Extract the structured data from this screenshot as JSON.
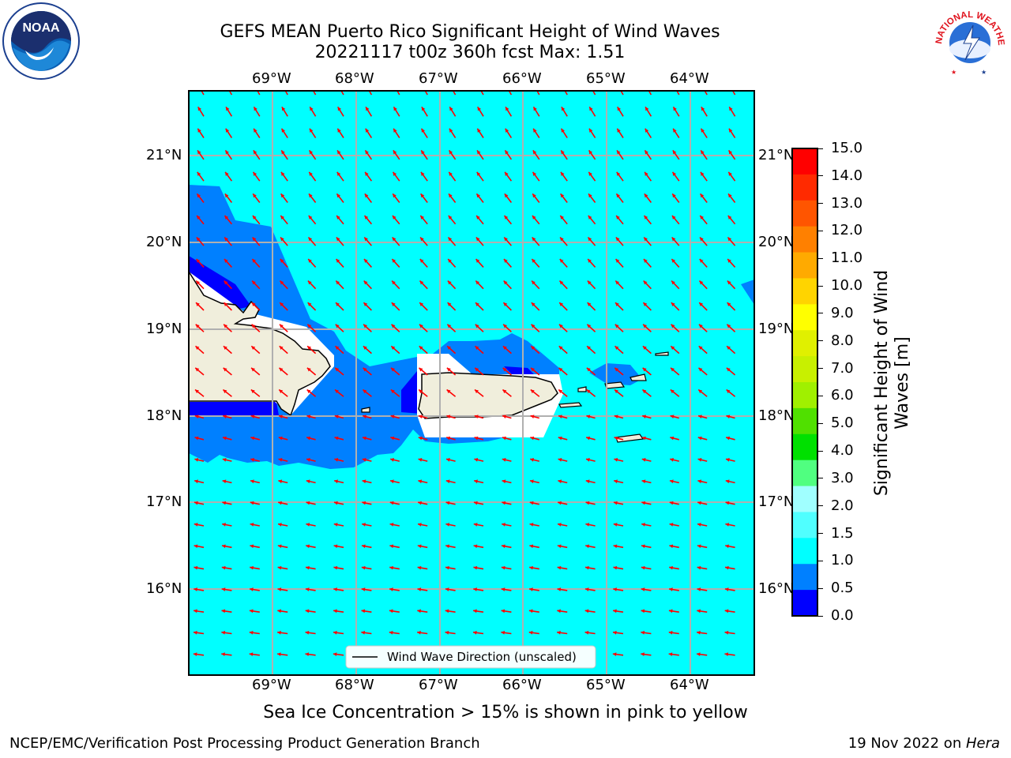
{
  "title": {
    "line1": "GEFS MEAN Puerto Rico Significant Height of Wind Waves",
    "line2": "20221117 t00z 360h fcst   Max: 1.51"
  },
  "map": {
    "lon_labels": [
      "69°W",
      "68°W",
      "67°W",
      "66°W",
      "65°W",
      "64°W"
    ],
    "lat_labels": [
      "21°N",
      "20°N",
      "19°N",
      "18°N",
      "17°N",
      "16°N"
    ],
    "extent": {
      "lon": [
        -70.0,
        -63.25
      ],
      "lat": [
        15.0,
        21.75
      ]
    },
    "ocean_color": "#00ffff",
    "arrow_color": "#ff0000",
    "land_color": "#f0eedc",
    "gridlines": true
  },
  "legend": {
    "label": "Wind Wave Direction (unscaled)",
    "placement": "lower-center"
  },
  "colorbar": {
    "title": "Significant Height of Wind Waves [m]",
    "ticks": [
      "15.0",
      "14.0",
      "13.0",
      "12.0",
      "11.0",
      "10.0",
      "9.0",
      "8.0",
      "7.0",
      "6.0",
      "5.0",
      "4.0",
      "3.0",
      "2.0",
      "1.5",
      "1.0",
      "0.5",
      "0.0"
    ],
    "colors": [
      "#ff0000",
      "#ff2a00",
      "#ff5500",
      "#ff8000",
      "#ffaa00",
      "#ffd400",
      "#ffff00",
      "#e0f000",
      "#c8f000",
      "#a0f000",
      "#50e000",
      "#00e000",
      "#50ff80",
      "#a0ffff",
      "#50ffff",
      "#00ffff",
      "#0080ff",
      "#0000ff"
    ]
  },
  "note": "Sea Ice Concentration > 15% is shown in pink to yellow",
  "footer": {
    "left": "NCEP/EMC/Verification Post Processing Product Generation Branch",
    "right_date": "19 Nov 2022 on ",
    "right_system": "Hera"
  },
  "logos": {
    "left": "NOAA",
    "right": "NATIONAL WEATHER SERVICE"
  }
}
